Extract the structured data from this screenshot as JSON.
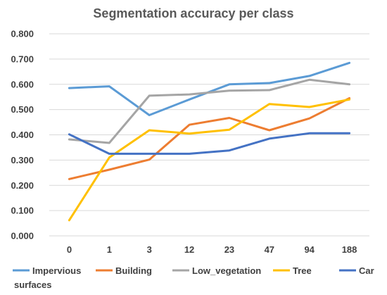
{
  "chart_data": {
    "type": "line",
    "title": "Segmentation accuracy per class",
    "xlabel": "",
    "ylabel": "",
    "categories": [
      "0",
      "1",
      "3",
      "12",
      "23",
      "47",
      "94",
      "188"
    ],
    "ylim": [
      0,
      0.8
    ],
    "yticks": [
      "0.000",
      "0.100",
      "0.200",
      "0.300",
      "0.400",
      "0.500",
      "0.600",
      "0.700",
      "0.800"
    ],
    "grid": true,
    "legend_position": "bottom",
    "series": [
      {
        "name": "Impervious surfaces",
        "name_lines": [
          "Impervious",
          "surfaces"
        ],
        "color": "#5b9bd5",
        "values": [
          0.585,
          0.592,
          0.478,
          0.54,
          0.6,
          0.605,
          0.633,
          0.685
        ]
      },
      {
        "name": "Building",
        "name_lines": [
          "Building"
        ],
        "color": "#ed7d31",
        "values": [
          0.225,
          0.262,
          0.302,
          0.44,
          0.467,
          0.418,
          0.465,
          0.545
        ]
      },
      {
        "name": "Low_vegetation",
        "name_lines": [
          "Low_vegetation"
        ],
        "color": "#a5a5a5",
        "values": [
          0.382,
          0.368,
          0.555,
          0.56,
          0.575,
          0.577,
          0.618,
          0.6
        ]
      },
      {
        "name": "Tree",
        "name_lines": [
          "Tree"
        ],
        "color": "#ffc000",
        "values": [
          0.062,
          0.31,
          0.418,
          0.405,
          0.42,
          0.522,
          0.51,
          0.54
        ]
      },
      {
        "name": "Car",
        "name_lines": [
          "Car"
        ],
        "color": "#4472c4",
        "values": [
          0.402,
          0.325,
          0.325,
          0.325,
          0.338,
          0.385,
          0.406,
          0.406
        ]
      }
    ]
  }
}
